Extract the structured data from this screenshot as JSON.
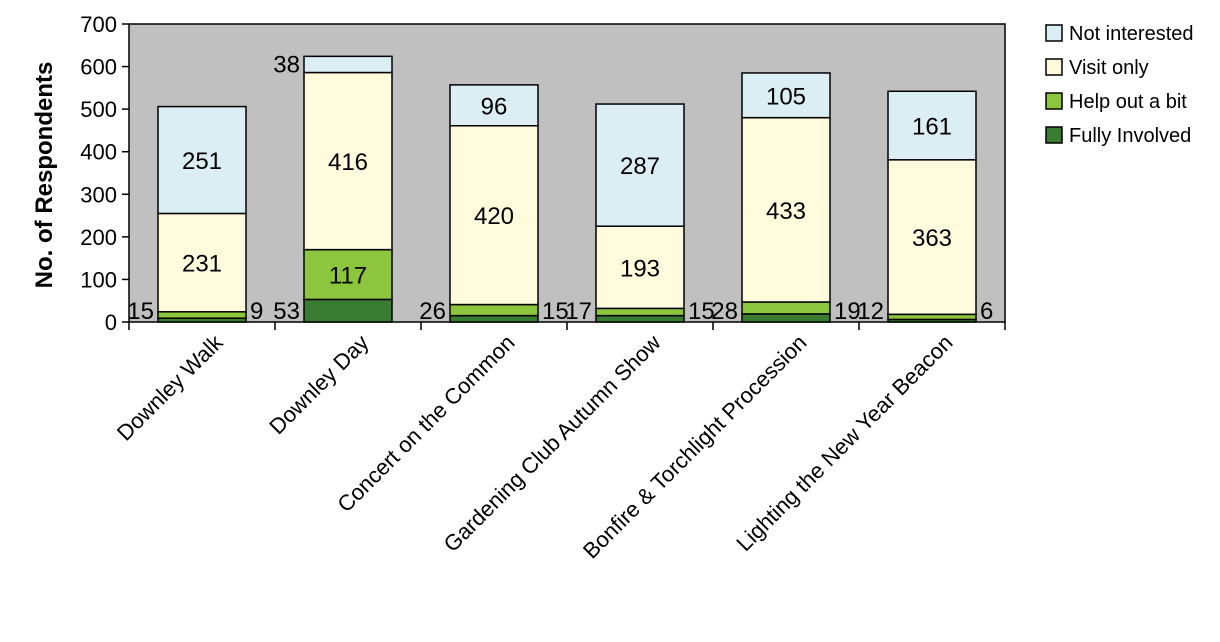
{
  "chart_data": {
    "type": "bar",
    "stacked": true,
    "title": "",
    "xlabel": "",
    "ylabel": "No. of Respondents",
    "ylim": [
      0,
      700
    ],
    "yticks": [
      0,
      100,
      200,
      300,
      400,
      500,
      600,
      700
    ],
    "grid": false,
    "legend_position": "right",
    "plot_background": "#c0c0c0",
    "categories": [
      "Downley Walk",
      "Downley Day",
      "Concert on the Common",
      "Gardening Club Autumn Show",
      "Bonfire & Torchlight Procession",
      "Lighting the New Year Beacon"
    ],
    "series": [
      {
        "name": "Fully Involved",
        "color": "#3a7d32",
        "values": [
          9,
          53,
          15,
          15,
          19,
          6
        ]
      },
      {
        "name": "Help out a bit",
        "color": "#8cc63f",
        "values": [
          15,
          117,
          26,
          17,
          28,
          12
        ]
      },
      {
        "name": "Visit only",
        "color": "#fffbdc",
        "values": [
          231,
          416,
          420,
          193,
          433,
          363
        ]
      },
      {
        "name": "Not interested",
        "color": "#dbeef4",
        "values": [
          251,
          38,
          96,
          287,
          105,
          161
        ]
      }
    ],
    "legend_order": [
      "Not interested",
      "Visit only",
      "Help out a bit",
      "Fully Involved"
    ],
    "data_labels": [
      {
        "category": 0,
        "series": "Help out a bit",
        "text": "15",
        "side": "left"
      },
      {
        "category": 0,
        "series": "Fully Involved",
        "text": "9",
        "side": "right"
      },
      {
        "category": 0,
        "series": "Visit only",
        "text": "231",
        "side": "center"
      },
      {
        "category": 0,
        "series": "Not interested",
        "text": "251",
        "side": "center"
      },
      {
        "category": 1,
        "series": "Fully Involved",
        "text": "53",
        "side": "left"
      },
      {
        "category": 1,
        "series": "Help out a bit",
        "text": "117",
        "side": "center"
      },
      {
        "category": 1,
        "series": "Visit only",
        "text": "416",
        "side": "center"
      },
      {
        "category": 1,
        "series": "Not interested",
        "text": "38",
        "side": "left-top"
      },
      {
        "category": 2,
        "series": "Help out a bit",
        "text": "26",
        "side": "left"
      },
      {
        "category": 2,
        "series": "Fully Involved",
        "text": "15",
        "side": "right"
      },
      {
        "category": 2,
        "series": "Visit only",
        "text": "420",
        "side": "center"
      },
      {
        "category": 2,
        "series": "Not interested",
        "text": "96",
        "side": "center"
      },
      {
        "category": 3,
        "series": "Help out a bit",
        "text": "17",
        "side": "left"
      },
      {
        "category": 3,
        "series": "Fully Involved",
        "text": "15",
        "side": "right"
      },
      {
        "category": 3,
        "series": "Visit only",
        "text": "193",
        "side": "center"
      },
      {
        "category": 3,
        "series": "Not interested",
        "text": "287",
        "side": "center"
      },
      {
        "category": 4,
        "series": "Help out a bit",
        "text": "28",
        "side": "left"
      },
      {
        "category": 4,
        "series": "Fully Involved",
        "text": "19",
        "side": "right"
      },
      {
        "category": 4,
        "series": "Visit only",
        "text": "433",
        "side": "center"
      },
      {
        "category": 4,
        "series": "Not interested",
        "text": "105",
        "side": "center"
      },
      {
        "category": 5,
        "series": "Help out a bit",
        "text": "12",
        "side": "left"
      },
      {
        "category": 5,
        "series": "Fully Involved",
        "text": "6",
        "side": "right"
      },
      {
        "category": 5,
        "series": "Visit only",
        "text": "363",
        "side": "center"
      },
      {
        "category": 5,
        "series": "Not interested",
        "text": "161",
        "side": "center"
      }
    ]
  }
}
